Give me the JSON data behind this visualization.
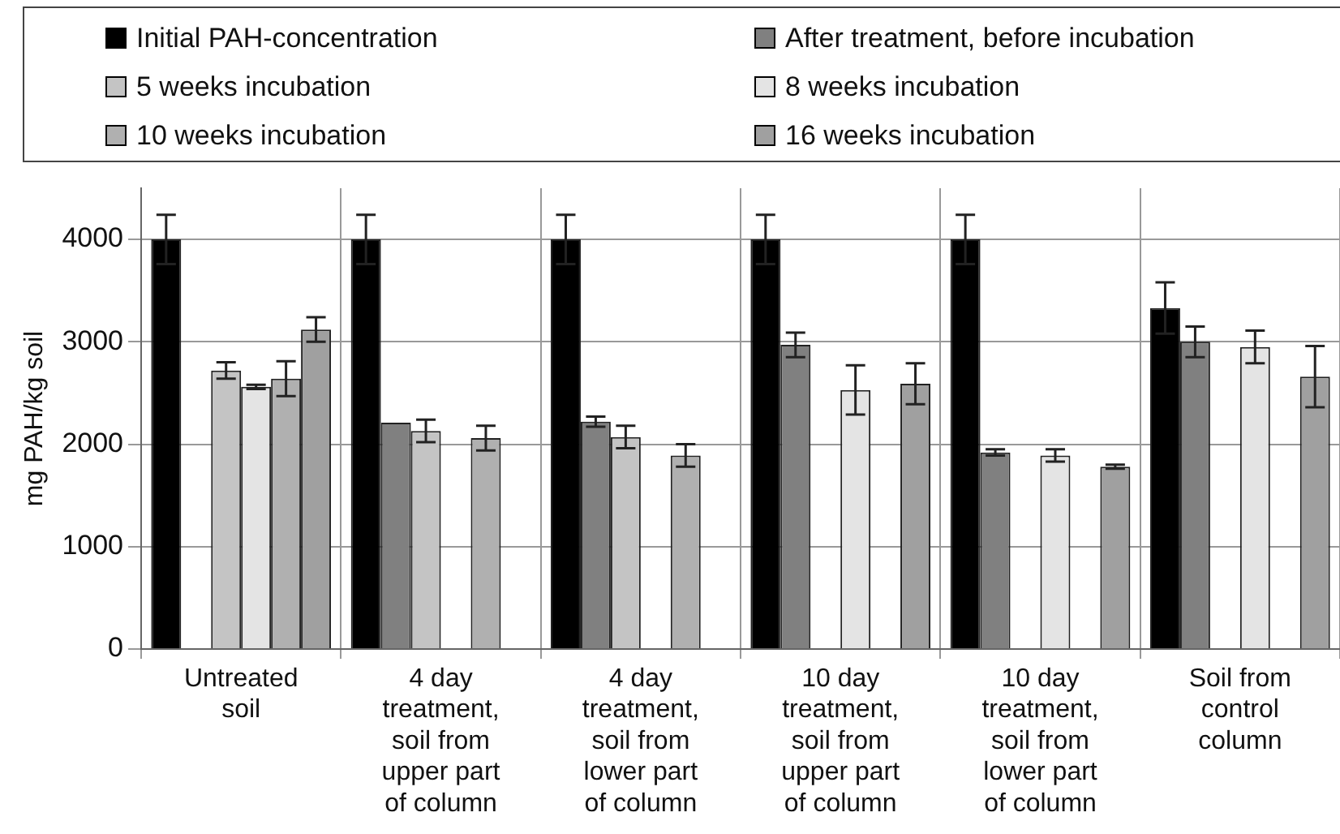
{
  "chart_data": {
    "type": "bar",
    "ylabel": "mg PAH/kg soil",
    "categories": [
      "Untreated soil",
      "4 day treatment, soil from upper part of column",
      "4 day treatment, soil from lower part of column",
      "10 day treatment, soil from upper part of column",
      "10 day treatment, soil from lower part of column",
      "Soil from control column"
    ],
    "series": [
      {
        "name": "Initial PAH-concentration",
        "color": "#000000",
        "values": [
          4000,
          4000,
          4000,
          4000,
          4000,
          3330
        ],
        "errors": [
          240,
          240,
          240,
          240,
          240,
          250
        ]
      },
      {
        "name": "After treatment, before incubation",
        "color": "#808080",
        "values": [
          null,
          2210,
          2220,
          2970,
          1920,
          3000
        ],
        "errors": [
          null,
          null,
          50,
          120,
          30,
          150
        ]
      },
      {
        "name": "5 weeks incubation",
        "color": "#c4c4c4",
        "values": [
          2720,
          2130,
          2070,
          null,
          null,
          null
        ],
        "errors": [
          80,
          110,
          110,
          null,
          null,
          null
        ]
      },
      {
        "name": "8 weeks incubation",
        "color": "#e4e4e4",
        "values": [
          2560,
          null,
          null,
          2530,
          1890,
          2950
        ],
        "errors": [
          20,
          null,
          null,
          240,
          60,
          160
        ]
      },
      {
        "name": "10 weeks incubation",
        "color": "#b0b0b0",
        "values": [
          2640,
          2060,
          1890,
          null,
          null,
          null
        ],
        "errors": [
          170,
          120,
          110,
          null,
          null,
          null
        ]
      },
      {
        "name": "16 weeks incubation",
        "color": "#a0a0a0",
        "values": [
          3120,
          null,
          null,
          2590,
          1780,
          2660
        ],
        "errors": [
          120,
          null,
          null,
          200,
          20,
          300
        ]
      }
    ],
    "ylim": [
      0,
      4500
    ],
    "yticks": [
      0,
      1000,
      2000,
      3000,
      4000
    ],
    "grid": true,
    "legend": "top"
  }
}
